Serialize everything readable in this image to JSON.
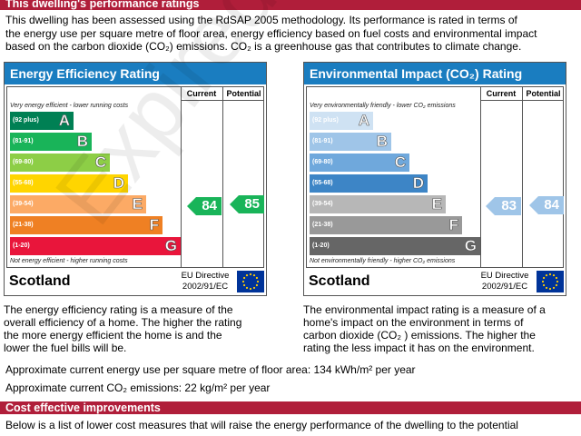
{
  "performance_header": "This dwelling's performance ratings",
  "intro_lines": [
    "This dwelling has been assessed using the RdSAP 2005 methodology.  Its performance is rated in terms of",
    "the energy use per square metre of floor area, energy efficiency based on fuel costs and environmental impact",
    "based on the carbon dioxide (CO₂) emissions.  CO₂ is a greenhouse gas that contributes to climate change."
  ],
  "energy": {
    "title": "Energy Efficiency Rating",
    "title_color": "#1a7dc0",
    "col_current": "Current",
    "col_potential": "Potential",
    "top_caption": "Very energy efficient - lower running costs",
    "bottom_caption": "Not energy efficient - higher running costs",
    "bands": [
      {
        "range": "(92 plus)",
        "letter": "A",
        "color": "#008054"
      },
      {
        "range": "(81-91)",
        "letter": "B",
        "color": "#19b459"
      },
      {
        "range": "(69-80)",
        "letter": "C",
        "color": "#8dce46"
      },
      {
        "range": "(55-68)",
        "letter": "D",
        "color": "#ffd500"
      },
      {
        "range": "(39-54)",
        "letter": "E",
        "color": "#fcaa65"
      },
      {
        "range": "(21-38)",
        "letter": "F",
        "color": "#ef8023"
      },
      {
        "range": "(1-20)",
        "letter": "G",
        "color": "#e9153b"
      }
    ],
    "current": "84",
    "potential": "85",
    "arrow_color": "#19b459",
    "country": "Scotland",
    "directive_line1": "EU Directive",
    "directive_line2": "2002/91/EC"
  },
  "environment": {
    "title": "Environmental Impact (CO₂) Rating",
    "title_color": "#1a7dc0",
    "col_current": "Current",
    "col_potential": "Potential",
    "top_caption": "Very environmentally friendly - lower CO₂ emissions",
    "bottom_caption": "Not environmentally friendly - higher CO₂ emissions",
    "bands": [
      {
        "range": "(92 plus)",
        "letter": "A",
        "color": "#cfe2f3"
      },
      {
        "range": "(81-91)",
        "letter": "B",
        "color": "#9fc5e8"
      },
      {
        "range": "(69-80)",
        "letter": "C",
        "color": "#6fa8dc"
      },
      {
        "range": "(55-68)",
        "letter": "D",
        "color": "#3d85c6"
      },
      {
        "range": "(39-54)",
        "letter": "E",
        "color": "#b7b7b7"
      },
      {
        "range": "(21-38)",
        "letter": "F",
        "color": "#999999"
      },
      {
        "range": "(1-20)",
        "letter": "G",
        "color": "#666666"
      }
    ],
    "current": "83",
    "potential": "84",
    "arrow_color": "#9fc5e8",
    "country": "Scotland",
    "directive_line1": "EU Directive",
    "directive_line2": "2002/91/EC"
  },
  "energy_desc_lines": [
    "The energy efficiency rating is a measure of the",
    "overall efficiency of a home. The higher the rating",
    "the more energy efficient the home is and the",
    "lower the fuel bills will be."
  ],
  "env_desc_lines": [
    "The environmental impact rating is a measure of a",
    "home's impact on the environment in terms of",
    "carbon dioxide (CO₂ ) emissions. The higher the",
    "rating the less impact it has on the environment."
  ],
  "energy_use_text": "Approximate current energy use per square metre of floor area: 134 kWh/m² per year",
  "co2_text": "Approximate current CO₂ emissions:  22 kg/m² per year",
  "improvements_header": "Cost effective improvements",
  "improvements_intro": "Below is a list of lower cost measures that will raise the energy performance of the dwelling to the potential",
  "watermark": "Expired - Not valid"
}
